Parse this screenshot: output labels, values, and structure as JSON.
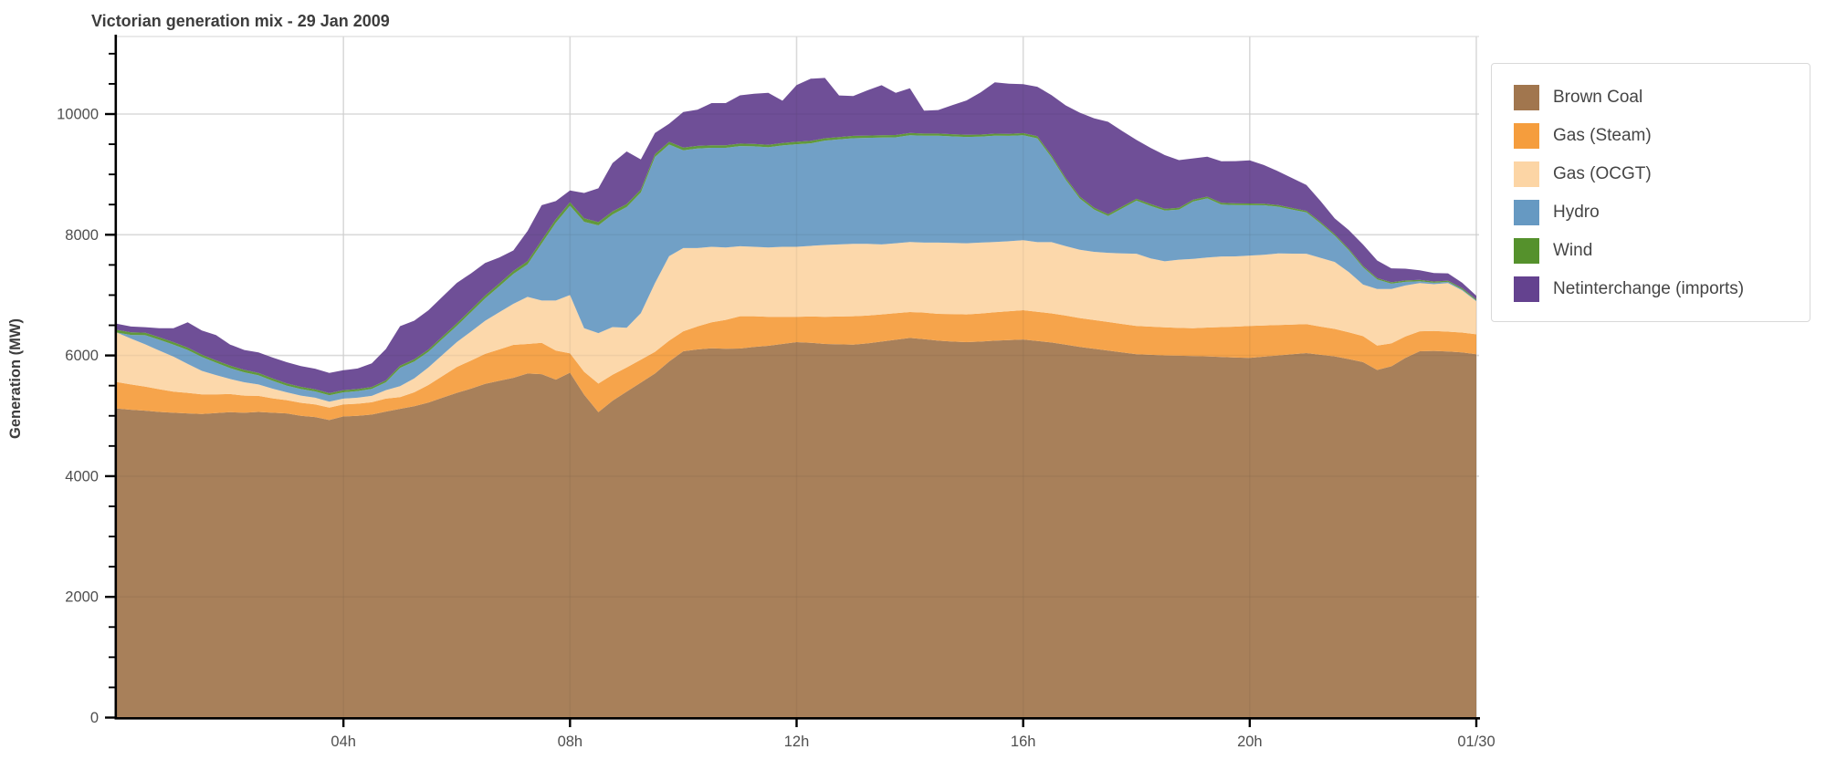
{
  "header": {
    "title": "Victorian generation mix - 29 Jan 2009"
  },
  "axes": {
    "ylabel": "Generation (MW)",
    "y_ticks": [
      {
        "value": 0,
        "label": "0"
      },
      {
        "value": 2000,
        "label": "2000"
      },
      {
        "value": 4000,
        "label": "4000"
      },
      {
        "value": 6000,
        "label": "6000"
      },
      {
        "value": 8000,
        "label": "8000"
      },
      {
        "value": 10000,
        "label": "10000"
      }
    ],
    "y_minor_step": 500,
    "x_ticks": [
      {
        "hour": 4,
        "label": "04h"
      },
      {
        "hour": 8,
        "label": "08h"
      },
      {
        "hour": 12,
        "label": "12h"
      },
      {
        "hour": 16,
        "label": "16h"
      },
      {
        "hour": 20,
        "label": "20h"
      },
      {
        "hour": 24,
        "label": "01/30"
      }
    ],
    "grid_color": "#e4e4e4",
    "spine_color": "#000000",
    "tick_label_color": "#4f4f4f"
  },
  "legend": {
    "position": "top-right-outside",
    "border_color": "#d9d9d9"
  },
  "chart_data": {
    "type": "area",
    "stacked": true,
    "title": "Victorian generation mix - 29 Jan 2009",
    "xlabel": "",
    "ylabel": "Generation (MW)",
    "grid": true,
    "xlim_hours": [
      0,
      24
    ],
    "ylim": [
      0,
      11290
    ],
    "x": {
      "unit": "hours_of_day",
      "start": 0,
      "step": 0.25,
      "count": 97
    },
    "series": [
      {
        "name": "Brown Coal",
        "color": "#a1764e",
        "values": [
          5120,
          5100,
          5085,
          5065,
          5050,
          5040,
          5030,
          5045,
          5060,
          5050,
          5065,
          5050,
          5040,
          5000,
          4980,
          4930,
          4990,
          5000,
          5020,
          5070,
          5115,
          5160,
          5220,
          5300,
          5380,
          5450,
          5530,
          5580,
          5630,
          5700,
          5690,
          5600,
          5715,
          5350,
          5060,
          5250,
          5400,
          5550,
          5700,
          5900,
          6070,
          6100,
          6120,
          6110,
          6115,
          6140,
          6160,
          6190,
          6220,
          6210,
          6190,
          6185,
          6180,
          6200,
          6230,
          6260,
          6290,
          6270,
          6245,
          6230,
          6220,
          6230,
          6245,
          6255,
          6265,
          6240,
          6215,
          6180,
          6140,
          6110,
          6080,
          6050,
          6020,
          6010,
          6000,
          5995,
          5990,
          5985,
          5975,
          5965,
          5960,
          5980,
          6000,
          6020,
          6040,
          6010,
          5985,
          5940,
          5890,
          5760,
          5820,
          5960,
          6070,
          6075,
          6065,
          6050,
          6020
        ]
      },
      {
        "name": "Gas (Steam)",
        "color": "#f59d3d",
        "values": [
          440,
          420,
          400,
          375,
          350,
          340,
          325,
          310,
          300,
          285,
          265,
          240,
          220,
          215,
          210,
          205,
          200,
          200,
          205,
          215,
          195,
          230,
          290,
          360,
          430,
          465,
          495,
          520,
          545,
          490,
          520,
          480,
          320,
          380,
          475,
          430,
          400,
          380,
          360,
          345,
          330,
          380,
          430,
          480,
          535,
          510,
          480,
          450,
          420,
          435,
          450,
          460,
          470,
          460,
          450,
          440,
          430,
          440,
          445,
          455,
          460,
          465,
          470,
          478,
          485,
          483,
          482,
          481,
          480,
          478,
          475,
          472,
          470,
          468,
          465,
          462,
          460,
          478,
          495,
          512,
          530,
          518,
          505,
          492,
          480,
          468,
          455,
          442,
          430,
          405,
          380,
          355,
          330,
          330,
          330,
          330,
          330
        ]
      },
      {
        "name": "Gas (OCGT)",
        "color": "#fcd5a5",
        "values": [
          820,
          760,
          700,
          640,
          580,
          480,
          390,
          320,
          250,
          220,
          190,
          160,
          130,
          120,
          110,
          100,
          95,
          100,
          105,
          140,
          180,
          230,
          290,
          350,
          410,
          480,
          550,
          615,
          680,
          780,
          700,
          830,
          965,
          720,
          835,
          790,
          660,
          770,
          1140,
          1400,
          1380,
          1300,
          1250,
          1200,
          1160,
          1150,
          1150,
          1160,
          1160,
          1170,
          1190,
          1195,
          1200,
          1190,
          1160,
          1160,
          1160,
          1160,
          1180,
          1180,
          1180,
          1175,
          1165,
          1160,
          1160,
          1155,
          1180,
          1150,
          1130,
          1130,
          1145,
          1170,
          1195,
          1130,
          1095,
          1130,
          1150,
          1160,
          1170,
          1165,
          1165,
          1170,
          1185,
          1175,
          1165,
          1140,
          1110,
          1000,
          855,
          935,
          900,
          845,
          800,
          775,
          805,
          700,
          550
        ]
      },
      {
        "name": "Hydro",
        "color": "#6699c2",
        "values": [
          0,
          60,
          150,
          180,
          200,
          230,
          230,
          205,
          180,
          165,
          150,
          130,
          110,
          108,
          105,
          105,
          105,
          110,
          115,
          130,
          305,
          280,
          260,
          265,
          270,
          320,
          370,
          430,
          495,
          540,
          945,
          1290,
          1480,
          1765,
          1785,
          1865,
          2000,
          2000,
          2090,
          1850,
          1620,
          1650,
          1640,
          1650,
          1660,
          1665,
          1660,
          1680,
          1700,
          1700,
          1730,
          1740,
          1750,
          1755,
          1770,
          1755,
          1770,
          1770,
          1770,
          1765,
          1760,
          1755,
          1760,
          1745,
          1740,
          1720,
          1405,
          1100,
          850,
          700,
          610,
          745,
          880,
          870,
          840,
          830,
          950,
          980,
          860,
          850,
          835,
          820,
          775,
          730,
          685,
          570,
          435,
          360,
          285,
          160,
          90,
          60,
          30,
          25,
          20,
          15,
          10
        ]
      },
      {
        "name": "Wind",
        "color": "#55912c",
        "values": [
          45,
          44,
          43,
          42,
          40,
          40,
          39,
          38,
          40,
          41,
          42,
          40,
          38,
          37,
          36,
          35,
          35,
          34,
          34,
          33,
          35,
          36,
          38,
          40,
          42,
          44,
          46,
          48,
          50,
          52,
          55,
          58,
          60,
          58,
          55,
          52,
          50,
          48,
          46,
          45,
          44,
          43,
          42,
          41,
          40,
          40,
          40,
          40,
          40,
          40,
          39,
          39,
          38,
          38,
          38,
          37,
          37,
          36,
          36,
          36,
          35,
          35,
          35,
          34,
          34,
          34,
          33,
          33,
          33,
          32,
          32,
          32,
          31,
          31,
          30,
          30,
          30,
          29,
          29,
          28,
          28,
          27,
          27,
          26,
          26,
          25,
          25,
          24,
          24,
          23,
          23,
          22,
          22,
          21,
          20,
          20,
          20
        ]
      },
      {
        "name": "Netinterchange (imports)",
        "color": "#64428f",
        "values": [
          100,
          95,
          90,
          150,
          230,
          420,
          400,
          420,
          350,
          330,
          340,
          345,
          350,
          345,
          340,
          335,
          330,
          340,
          390,
          520,
          655,
          640,
          650,
          660,
          670,
          600,
          540,
          430,
          340,
          500,
          580,
          300,
          195,
          420,
          560,
          800,
          870,
          500,
          350,
          300,
          590,
          600,
          700,
          700,
          800,
          830,
          860,
          700,
          940,
          1030,
          1000,
          690,
          660,
          750,
          830,
          700,
          740,
          380,
          390,
          480,
          570,
          700,
          850,
          830,
          810,
          820,
          1000,
          1200,
          1390,
          1480,
          1530,
          1250,
          975,
          930,
          890,
          790,
          685,
          660,
          690,
          700,
          715,
          640,
          560,
          495,
          430,
          345,
          260,
          310,
          355,
          290,
          230,
          195,
          160,
          140,
          120,
          90,
          60
        ]
      }
    ],
    "legend_entries": [
      "Brown Coal",
      "Gas (Steam)",
      "Gas (OCGT)",
      "Hydro",
      "Wind",
      "Netinterchange (imports)"
    ],
    "legend_position": "outside upper right"
  }
}
